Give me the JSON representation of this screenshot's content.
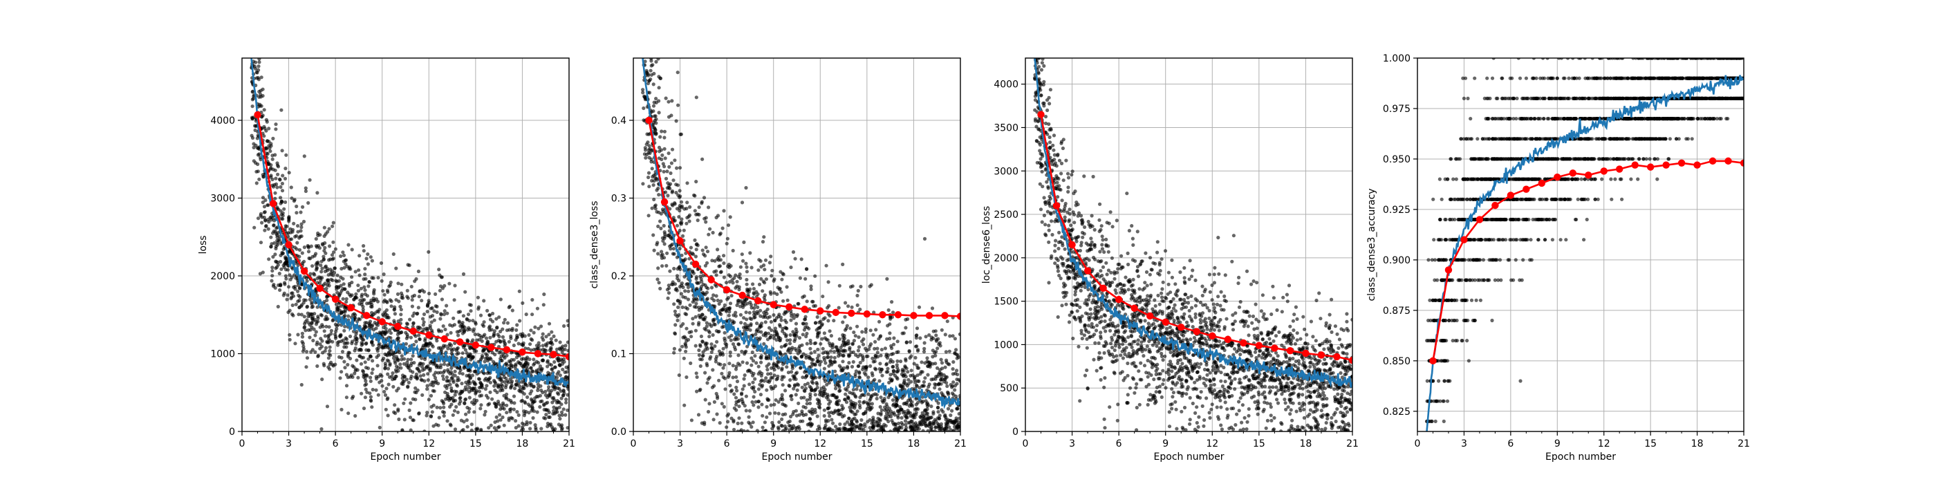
{
  "figure": {
    "background": "#ffffff",
    "colors": {
      "scatter": "#000000",
      "line_mean": "#1f77b4",
      "line_val": "#ff0000",
      "grid": "#b0b0b0"
    }
  },
  "chart_data": [
    {
      "type": "line",
      "name": "loss",
      "xlabel": "Epoch number",
      "ylabel": "loss",
      "xlim": [
        0,
        21
      ],
      "ylim": [
        0,
        4800
      ],
      "xticks": [
        0,
        3,
        6,
        9,
        12,
        15,
        18,
        21
      ],
      "yticks": [
        0,
        1000,
        2000,
        3000,
        4000
      ],
      "grid": true,
      "series": [
        {
          "kind": "scatter",
          "style": "black dots",
          "x": [
            0.6,
            21
          ],
          "y_model": "decay",
          "y0": 4800,
          "y_end": 650,
          "spread": 520
        },
        {
          "kind": "line",
          "style": "blue",
          "x": [
            0.6,
            1,
            1.5,
            2,
            3,
            4,
            5,
            6,
            8,
            10,
            12,
            14,
            16,
            18,
            20,
            21
          ],
          "y": [
            4800,
            4000,
            3300,
            2850,
            2250,
            1900,
            1650,
            1480,
            1260,
            1100,
            980,
            880,
            800,
            720,
            650,
            620
          ]
        },
        {
          "kind": "line",
          "style": "red markers",
          "x": [
            1,
            2,
            3,
            4,
            5,
            6,
            7,
            8,
            9,
            10,
            11,
            12,
            13,
            14,
            15,
            16,
            17,
            18,
            19,
            20,
            21
          ],
          "y": [
            4070,
            2930,
            2400,
            2060,
            1840,
            1700,
            1590,
            1490,
            1410,
            1350,
            1290,
            1240,
            1190,
            1150,
            1110,
            1080,
            1050,
            1020,
            1000,
            990,
            960
          ]
        }
      ]
    },
    {
      "type": "line",
      "name": "class_dense3_loss",
      "xlabel": "Epoch number",
      "ylabel": "class_dense3_loss",
      "xlim": [
        0,
        21
      ],
      "ylim": [
        0,
        0.48
      ],
      "xticks": [
        0,
        3,
        6,
        9,
        12,
        15,
        18,
        21
      ],
      "yticks": [
        0.0,
        0.1,
        0.2,
        0.3,
        0.4
      ],
      "ytick_labels": [
        "0.0",
        "0.1",
        "0.2",
        "0.3",
        "0.4"
      ],
      "grid": true,
      "series": [
        {
          "kind": "scatter",
          "style": "black dots",
          "x": [
            0.6,
            21
          ],
          "y_model": "decay",
          "y0": 0.48,
          "y_end": 0.04,
          "spread": 0.07
        },
        {
          "kind": "line",
          "style": "blue",
          "x": [
            0.6,
            1,
            1.5,
            2,
            3,
            4,
            5,
            6,
            8,
            10,
            12,
            14,
            16,
            18,
            20,
            21
          ],
          "y": [
            0.48,
            0.41,
            0.34,
            0.29,
            0.22,
            0.18,
            0.155,
            0.135,
            0.11,
            0.09,
            0.075,
            0.065,
            0.055,
            0.048,
            0.042,
            0.038
          ]
        },
        {
          "kind": "line",
          "style": "red markers",
          "x": [
            1,
            2,
            3,
            4,
            5,
            6,
            7,
            8,
            9,
            10,
            11,
            12,
            13,
            14,
            15,
            16,
            17,
            18,
            19,
            20,
            21
          ],
          "y": [
            0.4,
            0.295,
            0.245,
            0.215,
            0.195,
            0.182,
            0.175,
            0.168,
            0.163,
            0.16,
            0.157,
            0.155,
            0.153,
            0.152,
            0.151,
            0.15,
            0.15,
            0.149,
            0.149,
            0.149,
            0.148
          ]
        }
      ]
    },
    {
      "type": "line",
      "name": "loc_dense6_loss",
      "xlabel": "Epoch number",
      "ylabel": "loc_dense6_loss",
      "xlim": [
        0,
        21
      ],
      "ylim": [
        0,
        4300
      ],
      "xticks": [
        0,
        3,
        6,
        9,
        12,
        15,
        18,
        21
      ],
      "yticks": [
        0,
        500,
        1000,
        1500,
        2000,
        2500,
        3000,
        3500,
        4000
      ],
      "grid": true,
      "series": [
        {
          "kind": "scatter",
          "style": "black dots",
          "x": [
            0.6,
            21
          ],
          "y_model": "decay",
          "y0": 4300,
          "y_end": 570,
          "spread": 480
        },
        {
          "kind": "line",
          "style": "blue",
          "x": [
            0.6,
            1,
            1.5,
            2,
            3,
            4,
            5,
            6,
            8,
            10,
            12,
            14,
            16,
            18,
            20,
            21
          ],
          "y": [
            4300,
            3600,
            2950,
            2550,
            2000,
            1700,
            1480,
            1320,
            1120,
            980,
            870,
            790,
            710,
            650,
            590,
            560
          ]
        },
        {
          "kind": "line",
          "style": "red markers",
          "x": [
            1,
            2,
            3,
            4,
            5,
            6,
            7,
            8,
            9,
            10,
            11,
            12,
            13,
            14,
            15,
            16,
            17,
            18,
            19,
            20,
            21
          ],
          "y": [
            3650,
            2600,
            2150,
            1850,
            1650,
            1520,
            1420,
            1330,
            1260,
            1200,
            1150,
            1100,
            1060,
            1020,
            990,
            960,
            930,
            900,
            880,
            860,
            820
          ]
        }
      ]
    },
    {
      "type": "line",
      "name": "class_dense3_accuracy",
      "xlabel": "Epoch number",
      "ylabel": "class_dense3_accuracy",
      "xlim": [
        0,
        21
      ],
      "ylim": [
        0.815,
        1.0
      ],
      "xticks": [
        0,
        3,
        6,
        9,
        12,
        15,
        18,
        21
      ],
      "yticks": [
        0.825,
        0.85,
        0.875,
        0.9,
        0.925,
        0.95,
        0.975,
        1.0
      ],
      "ytick_labels": [
        "0.825",
        "0.850",
        "0.875",
        "0.900",
        "0.925",
        "0.950",
        "0.975",
        "1.000"
      ],
      "grid": true,
      "series": [
        {
          "kind": "scatter",
          "style": "black dots, quantized rows of 0.01",
          "rows": [
            0.82,
            0.83,
            0.84,
            0.85,
            0.86,
            0.87,
            0.88,
            0.89,
            0.9,
            0.91,
            0.92,
            0.93,
            0.94,
            0.95,
            0.96,
            0.97,
            0.98,
            0.99,
            1.0
          ]
        },
        {
          "kind": "line",
          "style": "blue",
          "x": [
            0.6,
            1,
            1.5,
            2,
            3,
            4,
            5,
            6,
            8,
            10,
            12,
            14,
            16,
            18,
            20,
            21
          ],
          "y": [
            0.815,
            0.85,
            0.875,
            0.895,
            0.915,
            0.928,
            0.937,
            0.944,
            0.954,
            0.962,
            0.969,
            0.975,
            0.98,
            0.984,
            0.988,
            0.99
          ]
        },
        {
          "kind": "line",
          "style": "red markers",
          "x": [
            1,
            2,
            3,
            4,
            5,
            6,
            7,
            8,
            9,
            10,
            11,
            12,
            13,
            14,
            15,
            16,
            17,
            18,
            19,
            20,
            21
          ],
          "y": [
            0.85,
            0.895,
            0.91,
            0.92,
            0.927,
            0.932,
            0.935,
            0.938,
            0.941,
            0.943,
            0.942,
            0.944,
            0.945,
            0.947,
            0.946,
            0.947,
            0.948,
            0.947,
            0.949,
            0.949,
            0.948
          ]
        }
      ]
    }
  ]
}
